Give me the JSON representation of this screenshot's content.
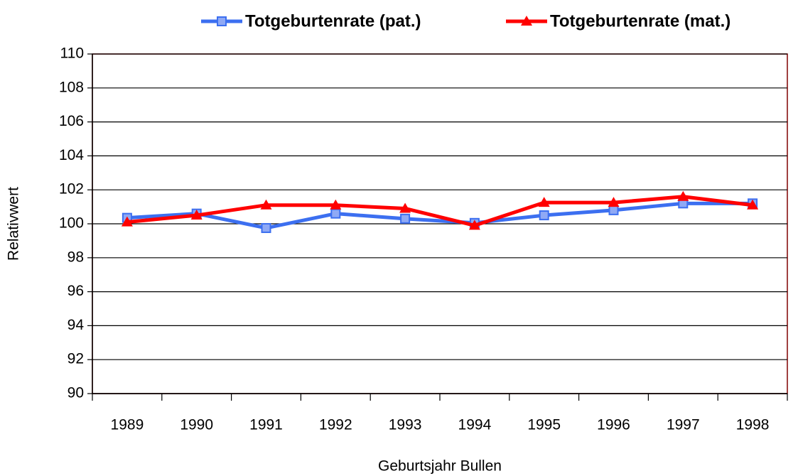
{
  "chart_data": {
    "type": "line",
    "x_label": "Geburtsjahr Bullen",
    "y_label": "Relativwert",
    "categories": [
      "1989",
      "1990",
      "1991",
      "1992",
      "1993",
      "1994",
      "1995",
      "1996",
      "1997",
      "1998"
    ],
    "series": [
      {
        "name": "Totgeburtenrate (pat.)",
        "color": "#3c6ff0",
        "marker": "square",
        "values": [
          100.35,
          100.6,
          99.75,
          100.6,
          100.3,
          100.05,
          100.5,
          100.8,
          101.2,
          101.2
        ]
      },
      {
        "name": "Totgeburtenrate (mat.)",
        "color": "#ff0000",
        "marker": "triangle",
        "values": [
          100.1,
          100.5,
          101.1,
          101.1,
          100.9,
          99.9,
          101.25,
          101.25,
          101.6,
          101.1
        ]
      }
    ],
    "ylim": [
      90,
      110
    ],
    "yticks": [
      90,
      92,
      94,
      96,
      98,
      100,
      102,
      104,
      106,
      108,
      110
    ],
    "grid": true,
    "legend": "top"
  }
}
